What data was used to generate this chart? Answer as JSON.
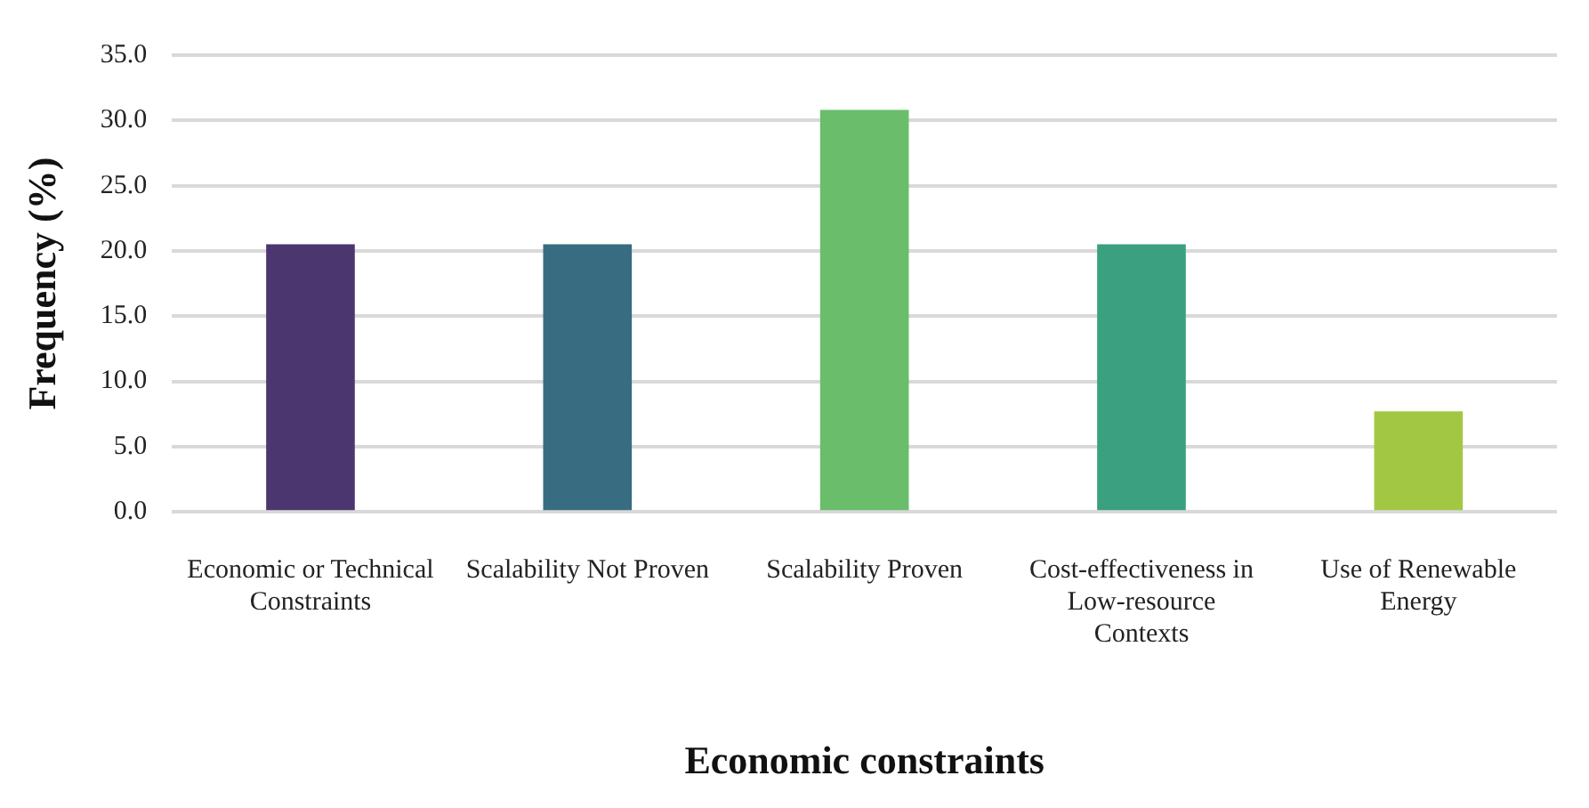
{
  "chart_data": {
    "type": "bar",
    "xlabel": "Economic constraints",
    "ylabel": "Frequency (%)",
    "categories": [
      "Economic or Technical Constraints",
      "Scalability Not Proven",
      "Scalability Proven",
      "Cost-effectiveness in Low-resource Contexts",
      "Use of Renewable Energy"
    ],
    "values": [
      20.5,
      20.5,
      30.8,
      20.5,
      7.7
    ],
    "colors": [
      "#4b3670",
      "#386c80",
      "#6abd6a",
      "#3aa080",
      "#a2c843"
    ],
    "ylim": [
      0,
      35
    ],
    "yticks": [
      {
        "value": 0,
        "label": "0.0"
      },
      {
        "value": 5,
        "label": "5.0"
      },
      {
        "value": 10,
        "label": "10.0"
      },
      {
        "value": 15,
        "label": "15.0"
      },
      {
        "value": 20,
        "label": "20.0"
      },
      {
        "value": 25,
        "label": "25.0"
      },
      {
        "value": 30,
        "label": "30.0"
      },
      {
        "value": 35,
        "label": "35.0"
      }
    ],
    "grid": "y",
    "legend": false
  }
}
